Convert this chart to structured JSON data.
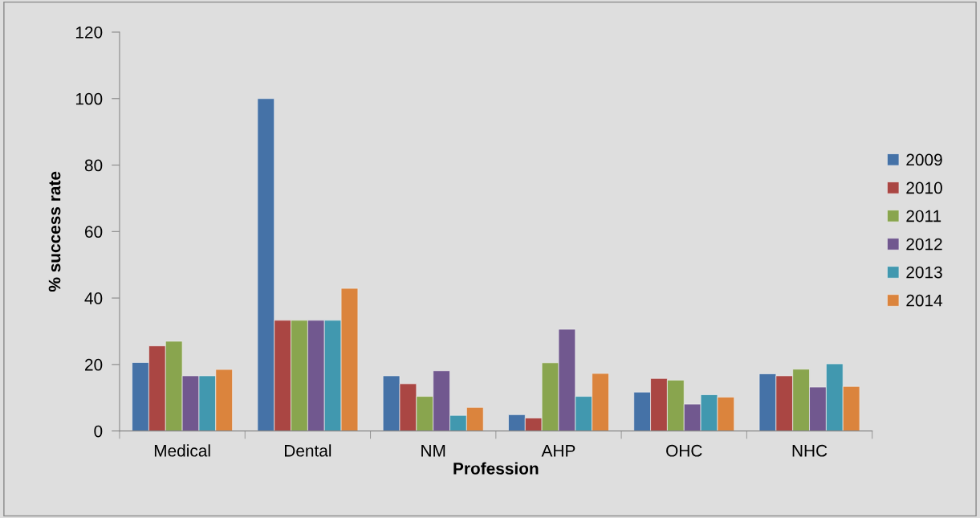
{
  "chart_data": {
    "type": "bar",
    "xlabel": "Profession",
    "ylabel": "% success rate",
    "categories": [
      "Medical",
      "Dental",
      "NM",
      "AHP",
      "OHC",
      "NHC"
    ],
    "series": [
      {
        "name": "2009",
        "color": "#4572a7",
        "values": [
          20.6,
          100,
          16.6,
          4.9,
          11.7,
          17.2
        ]
      },
      {
        "name": "2010",
        "color": "#aa4643",
        "values": [
          25.6,
          33.3,
          14.2,
          3.9,
          15.8,
          16.6
        ]
      },
      {
        "name": "2011",
        "color": "#89a54e",
        "values": [
          27.0,
          33.3,
          10.4,
          20.5,
          15.3,
          18.6
        ]
      },
      {
        "name": "2012",
        "color": "#71588f",
        "values": [
          16.6,
          33.3,
          18.1,
          30.6,
          8.1,
          13.2
        ]
      },
      {
        "name": "2013",
        "color": "#4198af",
        "values": [
          16.6,
          33.3,
          4.7,
          10.4,
          10.9,
          20.2
        ]
      },
      {
        "name": "2014",
        "color": "#db843d",
        "values": [
          18.5,
          42.9,
          7.1,
          17.3,
          10.2,
          13.4
        ]
      }
    ],
    "ylim": [
      0,
      120
    ],
    "yticks": [
      0,
      20,
      40,
      60,
      80,
      100,
      120
    ],
    "grid": false,
    "legend": "right"
  }
}
